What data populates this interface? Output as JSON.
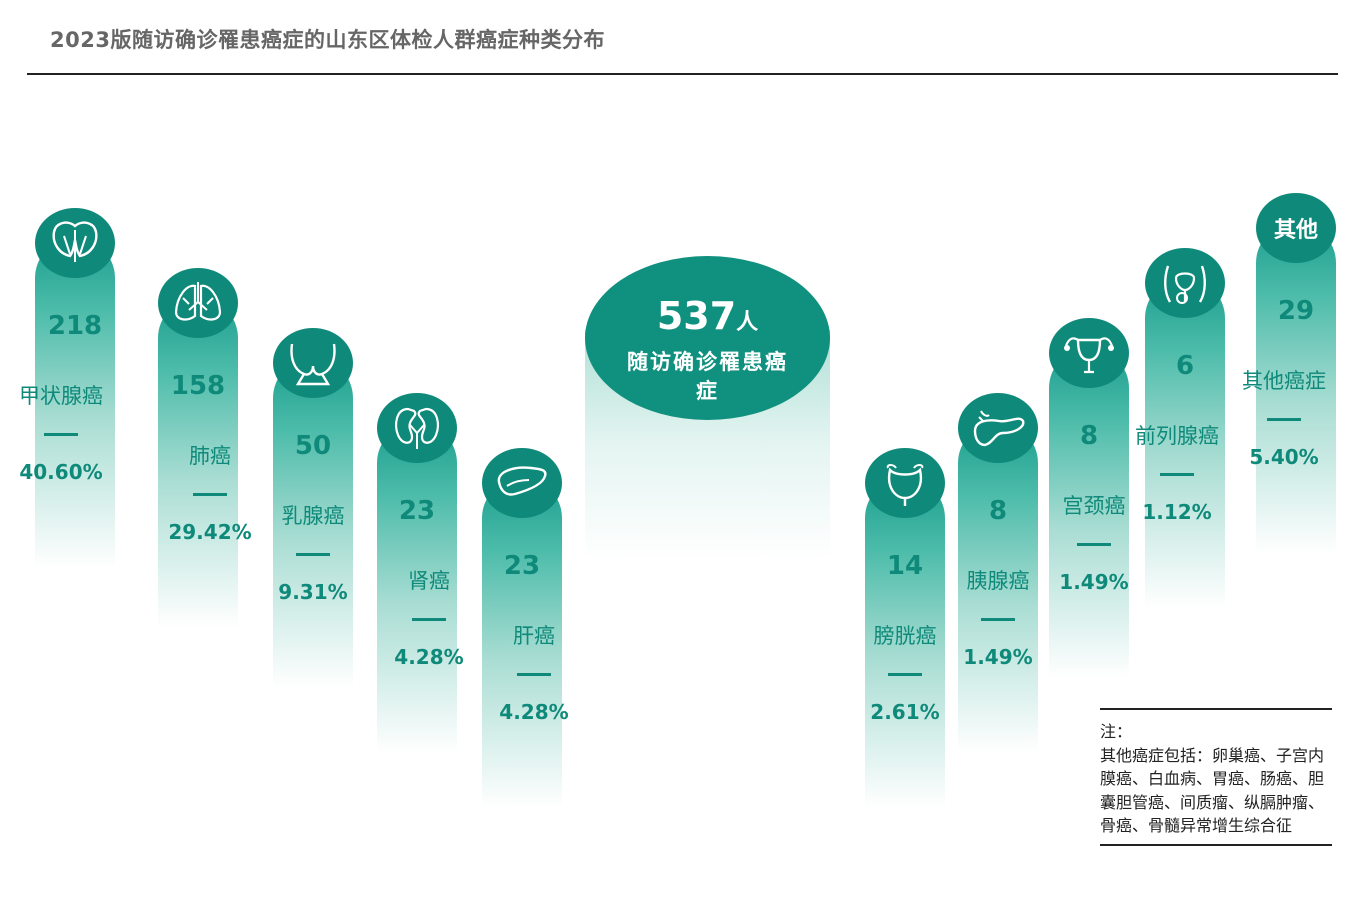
{
  "title": "2023版随访确诊罹患癌症的山东区体检人群癌症种类分布",
  "center": {
    "total": "537",
    "unit": "人",
    "label": "随访确诊罹患癌症"
  },
  "colors": {
    "primary": "#0f8a7a",
    "bar_top": "#1b9e8e"
  },
  "chart_data": {
    "type": "bar",
    "title": "2023版随访确诊罹患癌症的山东区体检人群癌症种类分布",
    "total": 537,
    "categories": [
      "甲状腺癌",
      "肺癌",
      "乳腺癌",
      "肾癌",
      "肝癌",
      "膀胱癌",
      "胰腺癌",
      "宫颈癌",
      "前列腺癌",
      "其他癌症"
    ],
    "values": [
      218,
      158,
      50,
      23,
      23,
      14,
      8,
      8,
      6,
      29
    ],
    "percent_labels": [
      "40.60%",
      "29.42%",
      "9.31%",
      "4.28%",
      "4.28%",
      "2.61%",
      "1.49%",
      "1.49%",
      "1.12%",
      "5.40%"
    ],
    "count_labels": [
      "218",
      "158",
      "50",
      "23",
      "23",
      "14",
      "8",
      "8",
      "6",
      "29"
    ],
    "icons": [
      "thyroid-icon",
      "lungs-icon",
      "breast-icon",
      "kidney-icon",
      "liver-icon",
      "bladder-icon",
      "pancreas-icon",
      "uterus-icon",
      "prostate-icon",
      ""
    ],
    "cap_texts": [
      "",
      "",
      "",
      "",
      "",
      "",
      "",
      "",
      "",
      "其他"
    ]
  },
  "note": {
    "heading": "注：",
    "text": "其他癌症包括：卵巢癌、子宫内膜癌、白血病、胃癌、肠癌、胆囊胆管癌、间质瘤、纵膈肿瘤、骨癌、骨髓异常增生综合征"
  }
}
